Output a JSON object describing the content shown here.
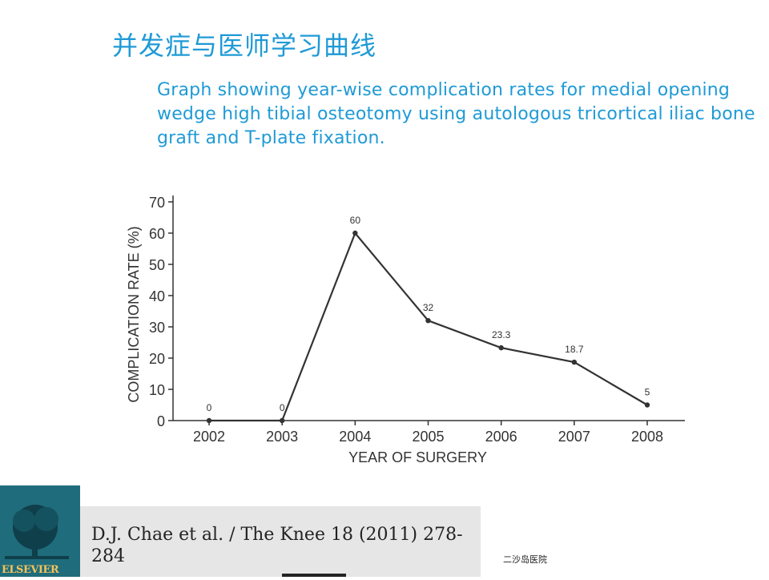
{
  "slide": {
    "title": "并发症与医师学习曲线",
    "subtitle": "Graph showing year-wise complication rates for medial opening wedge high tibial osteotomy using autologous tricortical iliac bone graft and T-plate fixation.",
    "reference": "D.J. Chae et al. / The Knee 18 (2011) 278-284",
    "hospital": "二沙岛医院",
    "logo_text": "ELSEVIER"
  },
  "colors": {
    "title_blue": "#1f9ad6",
    "line": "#333333",
    "logo_bg": "#1f6c7c",
    "logo_text": "#f3c35b"
  },
  "chart_data": {
    "type": "line",
    "categories": [
      "2002",
      "2003",
      "2004",
      "2005",
      "2006",
      "2007",
      "2008"
    ],
    "values": [
      0,
      0,
      60,
      32,
      23.3,
      18.7,
      5
    ],
    "data_labels": [
      "0",
      "0",
      "60",
      "32",
      "23.3",
      "18.7",
      "5"
    ],
    "xlabel": "YEAR OF SURGERY",
    "ylabel": "COMPLICATION RATE (%)",
    "ylim": [
      0,
      70
    ],
    "yticks": [
      0,
      10,
      20,
      30,
      40,
      50,
      60,
      70
    ],
    "grid": false,
    "legend": "none"
  }
}
